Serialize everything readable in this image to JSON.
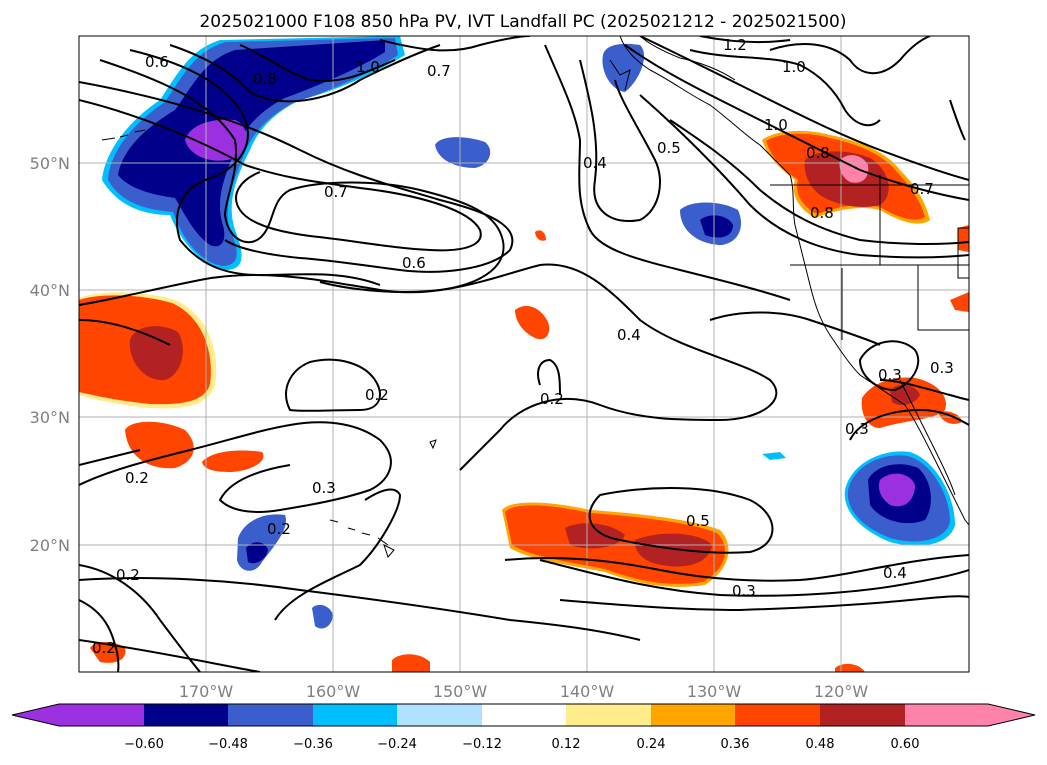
{
  "title": "2025021000 F108 850 hPa PV, IVT Landfall PC (2025021212 - 2025021500)",
  "lat_labels": [
    "50°N",
    "40°N",
    "30°N",
    "20°N"
  ],
  "lon_labels": [
    "170°W",
    "160°W",
    "150°W",
    "140°W",
    "130°W",
    "120°W"
  ],
  "colorbar": {
    "tick_labels": [
      "−0.60",
      "−0.48",
      "−0.36",
      "−0.24",
      "−0.12",
      "0.12",
      "0.24",
      "0.36",
      "0.48",
      "0.60"
    ],
    "colors": [
      "#9b30e0",
      "#00008b",
      "#3a5fcd",
      "#00bfff",
      "#b0e2ff",
      "#ffffff",
      "#ffec8b",
      "#ffa500",
      "#ff4500",
      "#b22222",
      "#ff82ab"
    ]
  },
  "contour_labels": [
    "0.6",
    "0.8",
    "1.0",
    "0.7",
    "1.2",
    "1.0",
    "1.0",
    "0.4",
    "0.5",
    "0.8",
    "0.7",
    "0.8",
    "0.7",
    "0.6",
    "0.4",
    "0.2",
    "0.2",
    "0.3",
    "0.3",
    "0.2",
    "0.2",
    "0.3",
    "0.5",
    "0.4",
    "0.3",
    "0.2",
    "0.2",
    "0.3"
  ],
  "chart_data": {
    "type": "map",
    "title": "2025021000 F108 850 hPa PV, IVT Landfall PC (2025021212 - 2025021500)",
    "lon_range": [
      "180°W",
      "110°W"
    ],
    "lat_range": [
      "10°N",
      "60°N"
    ],
    "grid": true,
    "colorbar_levels": [
      -0.6,
      -0.48,
      -0.36,
      -0.24,
      -0.12,
      0.12,
      0.24,
      0.36,
      0.48,
      0.6
    ],
    "contour_levels_labeled": [
      0.2,
      0.3,
      0.4,
      0.5,
      0.6,
      0.7,
      0.8,
      1.0,
      1.2
    ]
  }
}
